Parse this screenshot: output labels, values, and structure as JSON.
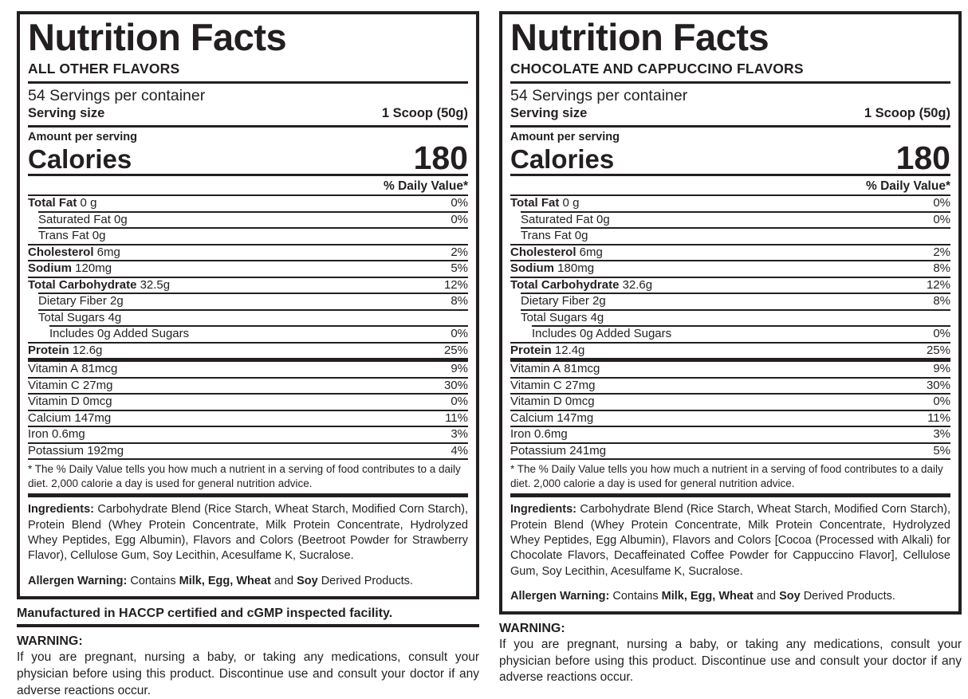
{
  "colors": {
    "ink": "#231f20",
    "background": "#ffffff"
  },
  "panels": [
    {
      "title": "Nutrition Facts",
      "flavor": "ALL OTHER FLAVORS",
      "servings_per_container": "54 Servings per container",
      "serving_size_label": "Serving size",
      "serving_size_value": "1 Scoop (50g)",
      "amount_per_serving": "Amount per serving",
      "calories_label": "Calories",
      "calories_value": "180",
      "daily_value_header": "% Daily Value*",
      "rows": [
        {
          "name": "Total Fat",
          "amount": "0 g",
          "dv": "0%",
          "indent": 0,
          "bold": true
        },
        {
          "name": "Saturated Fat",
          "amount": "0g",
          "dv": "0%",
          "indent": 1,
          "bold": false
        },
        {
          "name": "Trans Fat",
          "amount": "0g",
          "dv": "",
          "indent": 1,
          "bold": false
        },
        {
          "name": "Cholesterol",
          "amount": "6mg",
          "dv": "2%",
          "indent": 0,
          "bold": true
        },
        {
          "name": "Sodium",
          "amount": "120mg",
          "dv": "5%",
          "indent": 0,
          "bold": true
        },
        {
          "name": "Total Carbohydrate",
          "amount": "32.5g",
          "dv": "12%",
          "indent": 0,
          "bold": true
        },
        {
          "name": "Dietary Fiber",
          "amount": "2g",
          "dv": "8%",
          "indent": 1,
          "bold": false
        },
        {
          "name": "Total Sugars",
          "amount": "4g",
          "dv": "",
          "indent": 1,
          "bold": false
        },
        {
          "name": "Includes 0g Added Sugars",
          "amount": "",
          "dv": "0%",
          "indent": 2,
          "bold": false
        },
        {
          "name": "Protein",
          "amount": "12.6g",
          "dv": "25%",
          "indent": 0,
          "bold": true
        },
        {
          "name": "Vitamin A",
          "amount": "81mcg",
          "dv": "9%",
          "indent": 0,
          "bold": false,
          "thick_top": true
        },
        {
          "name": "Vitamin C",
          "amount": "27mg",
          "dv": "30%",
          "indent": 0,
          "bold": false
        },
        {
          "name": "Vitamin D",
          "amount": "0mcg",
          "dv": "0%",
          "indent": 0,
          "bold": false
        },
        {
          "name": "Calcium",
          "amount": "147mg",
          "dv": "11%",
          "indent": 0,
          "bold": false
        },
        {
          "name": "Iron",
          "amount": "0.6mg",
          "dv": "3%",
          "indent": 0,
          "bold": false
        },
        {
          "name": "Potassium",
          "amount": "192mg",
          "dv": "4%",
          "indent": 0,
          "bold": false
        }
      ],
      "footnote": "* The % Daily Value tells you how much a nutrient in a serving of food contributes to a daily diet. 2,000 calorie a day is used for general nutrition advice.",
      "ingredients_label": "Ingredients:",
      "ingredients_text": "Carbohydrate Blend (Rice Starch, Wheat Starch, Modified Corn Starch), Protein Blend (Whey Protein Concentrate, Milk Protein Concentrate, Hydrolyzed Whey Peptides, Egg Albumin), Flavors and Colors (Beetroot Powder for Strawberry Flavor), Cellulose Gum, Soy Lecithin, Acesulfame K, Sucralose.",
      "allergen_label": "Allergen Warning:",
      "allergen_segments": [
        {
          "text": " Contains ",
          "bold": false
        },
        {
          "text": "Milk, Egg, Wheat",
          "bold": true
        },
        {
          "text": " and ",
          "bold": false
        },
        {
          "text": "Soy",
          "bold": true
        },
        {
          "text": " Derived Products.",
          "bold": false
        }
      ],
      "manufactured": "Manufactured in HACCP certified and cGMP inspected facility.",
      "warning_label": "WARNING:",
      "warning_text": "If you are pregnant, nursing a baby, or taking any medications, consult your physician before using this product. Discontinue use and consult your doctor if any adverse reactions occur."
    },
    {
      "title": "Nutrition Facts",
      "flavor": "CHOCOLATE AND CAPPUCCINO FLAVORS",
      "servings_per_container": "54 Servings per container",
      "serving_size_label": "Serving size",
      "serving_size_value": "1 Scoop (50g)",
      "amount_per_serving": "Amount per serving",
      "calories_label": "Calories",
      "calories_value": "180",
      "daily_value_header": "% Daily Value*",
      "rows": [
        {
          "name": "Total Fat",
          "amount": "0 g",
          "dv": "0%",
          "indent": 0,
          "bold": true
        },
        {
          "name": "Saturated Fat",
          "amount": "0g",
          "dv": "0%",
          "indent": 1,
          "bold": false
        },
        {
          "name": "Trans Fat",
          "amount": "0g",
          "dv": "",
          "indent": 1,
          "bold": false
        },
        {
          "name": "Cholesterol",
          "amount": "6mg",
          "dv": "2%",
          "indent": 0,
          "bold": true
        },
        {
          "name": "Sodium",
          "amount": "180mg",
          "dv": "8%",
          "indent": 0,
          "bold": true
        },
        {
          "name": "Total Carbohydrate",
          "amount": "32.6g",
          "dv": "12%",
          "indent": 0,
          "bold": true
        },
        {
          "name": "Dietary Fiber",
          "amount": "2g",
          "dv": "8%",
          "indent": 1,
          "bold": false
        },
        {
          "name": "Total Sugars",
          "amount": "4g",
          "dv": "",
          "indent": 1,
          "bold": false
        },
        {
          "name": "Includes 0g Added Sugars",
          "amount": "",
          "dv": "0%",
          "indent": 2,
          "bold": false
        },
        {
          "name": "Protein",
          "amount": "12.4g",
          "dv": "25%",
          "indent": 0,
          "bold": true
        },
        {
          "name": "Vitamin A",
          "amount": "81mcg",
          "dv": "9%",
          "indent": 0,
          "bold": false,
          "thick_top": true
        },
        {
          "name": "Vitamin C",
          "amount": "27mg",
          "dv": "30%",
          "indent": 0,
          "bold": false
        },
        {
          "name": "Vitamin D",
          "amount": "0mcg",
          "dv": "0%",
          "indent": 0,
          "bold": false
        },
        {
          "name": "Calcium",
          "amount": "147mg",
          "dv": "11%",
          "indent": 0,
          "bold": false
        },
        {
          "name": "Iron",
          "amount": "0.6mg",
          "dv": "3%",
          "indent": 0,
          "bold": false
        },
        {
          "name": "Potassium",
          "amount": "241mg",
          "dv": "5%",
          "indent": 0,
          "bold": false
        }
      ],
      "footnote": "* The % Daily Value tells you how much a nutrient in a serving of food contributes to a daily diet. 2,000 calorie a day is used for general nutrition advice.",
      "ingredients_label": "Ingredients:",
      "ingredients_text": "Carbohydrate Blend (Rice Starch, Wheat Starch, Modified Corn Starch), Protein Blend (Whey Protein Concentrate, Milk Protein Concentrate, Hydrolyzed Whey Peptides, Egg Albumin), Flavors and Colors [Cocoa (Processed with Alkali) for Chocolate Flavors, Decaffeinated Coffee Powder for Cappuccino Flavor], Cellulose Gum, Soy Lecithin, Acesulfame K, Sucralose.",
      "allergen_label": "Allergen Warning:",
      "allergen_segments": [
        {
          "text": " Contains ",
          "bold": false
        },
        {
          "text": "Milk, Egg, Wheat",
          "bold": true
        },
        {
          "text": " and ",
          "bold": false
        },
        {
          "text": "Soy",
          "bold": true
        },
        {
          "text": " Derived Products.",
          "bold": false
        }
      ],
      "warning_label": "WARNING:",
      "warning_text": "If you are pregnant, nursing a baby, or taking any medications, consult your physician before using this product. Discontinue use and consult your doctor if any adverse reactions occur."
    }
  ]
}
